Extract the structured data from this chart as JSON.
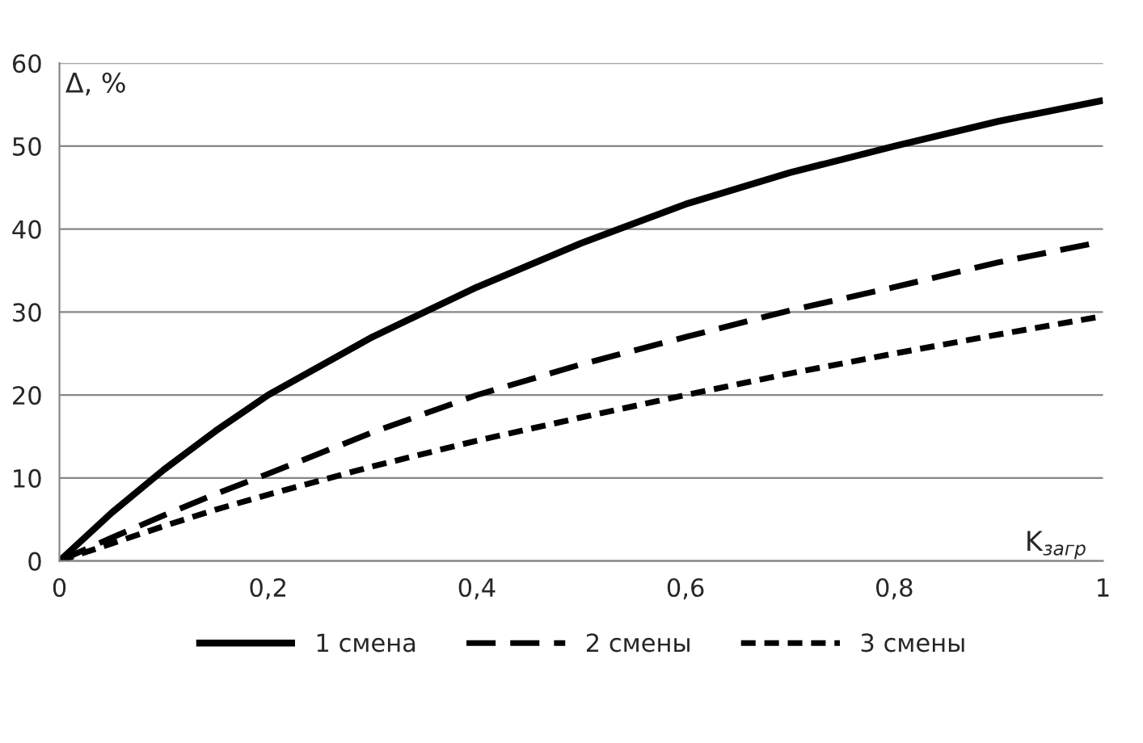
{
  "chart_data": {
    "type": "line",
    "xlabel": "K$_{загр}$",
    "ylabel": "Δ, %",
    "x": [
      0,
      0.05,
      0.1,
      0.15,
      0.2,
      0.3,
      0.4,
      0.5,
      0.6,
      0.7,
      0.8,
      0.9,
      1
    ],
    "series": [
      {
        "name": "1 смена",
        "color": "#000000",
        "line_style": "solid",
        "values": [
          0,
          5.8,
          11,
          15.7,
          20,
          27,
          33,
          38.3,
          43,
          46.8,
          50,
          53,
          55.5
        ]
      },
      {
        "name": "2 смены",
        "color": "#000000",
        "line_style": "dashed",
        "values": [
          0,
          2.8,
          5.5,
          8.1,
          10.5,
          15.5,
          20,
          23.7,
          27,
          30.2,
          33,
          36,
          38.5
        ]
      },
      {
        "name": "3 смены",
        "color": "#000000",
        "line_style": "dotted",
        "values": [
          0,
          2.1,
          4.2,
          6.2,
          8,
          11.4,
          14.5,
          17.3,
          20,
          22.6,
          25,
          27.3,
          29.5
        ]
      }
    ],
    "xlim": [
      0,
      1
    ],
    "xticks": [
      0,
      {
        "value": 0.2,
        "label": "0,2"
      },
      {
        "value": 0.4,
        "label": "0,4"
      },
      {
        "value": 0.6,
        "label": "0,6"
      },
      {
        "value": 0.8,
        "label": "0,8"
      },
      1
    ],
    "ylim": [
      0,
      60
    ],
    "yticks": [
      0,
      10,
      20,
      30,
      40,
      50,
      60
    ],
    "grid": "y",
    "legend": "bottom"
  }
}
